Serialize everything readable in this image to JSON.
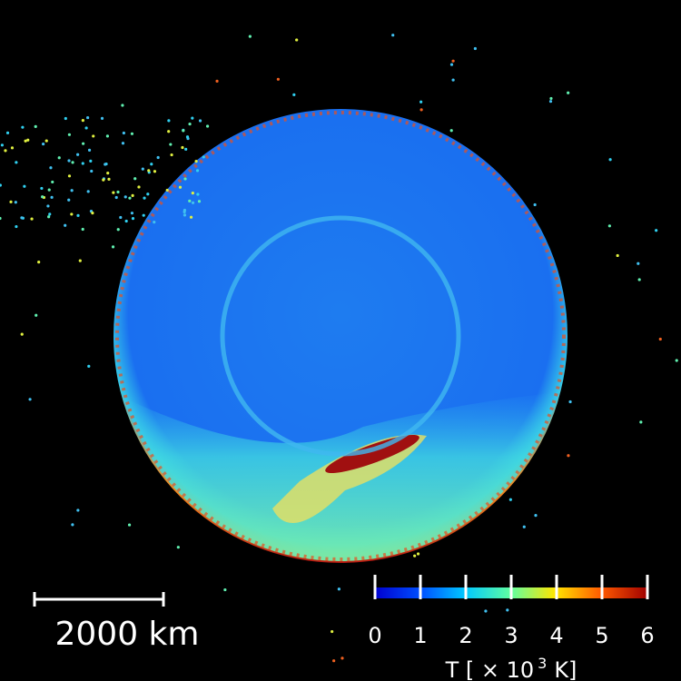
{
  "scale_bar": {
    "label": "2000 km"
  },
  "colorbar": {
    "lim": [
      0,
      6
    ],
    "ticks": [
      0,
      1,
      2,
      3,
      4,
      5,
      6
    ],
    "label": "T [ × 10",
    "exponent": "3",
    "unit": "K]"
  }
}
